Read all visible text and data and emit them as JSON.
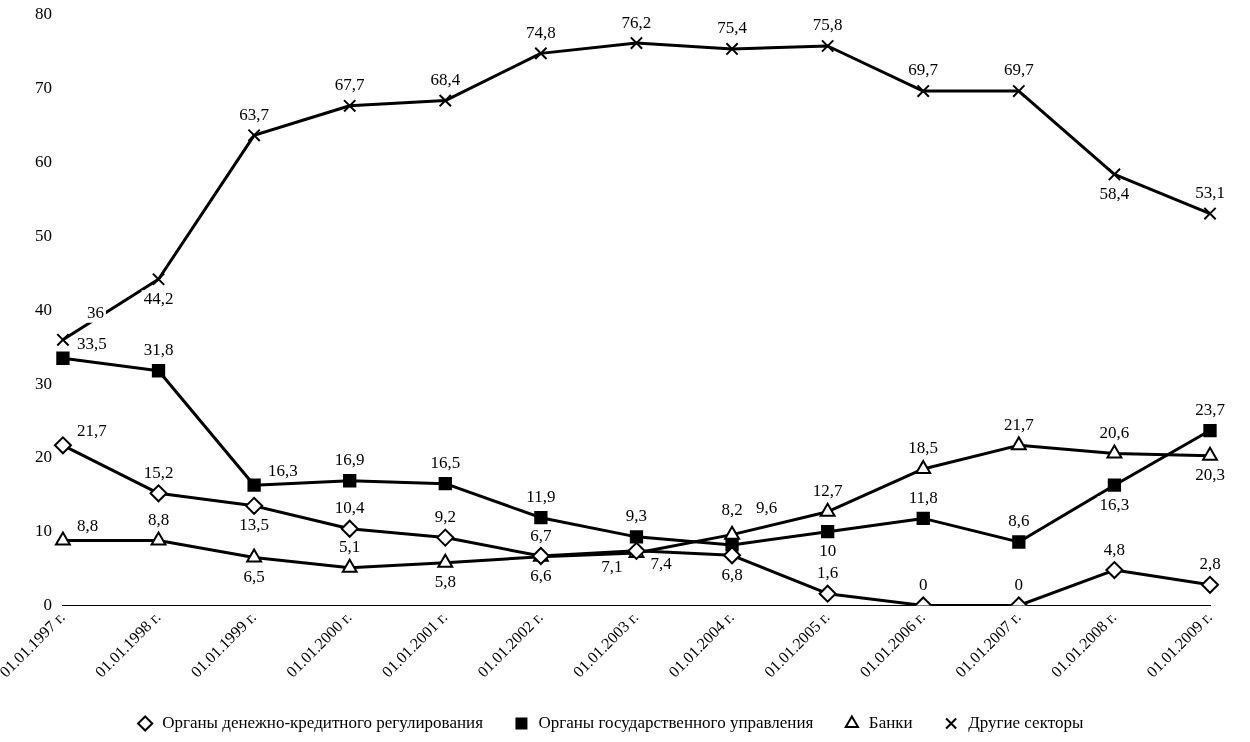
{
  "chart_data": {
    "type": "line",
    "categories": [
      "01.01.1997 г.",
      "01.01.1998 г.",
      "01.01.1999 г.",
      "01.01.2000 г.",
      "01.01.2001 г.",
      "01.01.2002 г.",
      "01.01.2003 г.",
      "01.01.2004 г.",
      "01.01.2005 г.",
      "01.01.2006 г.",
      "01.01.2007 г.",
      "01.01.2008 г.",
      "01.01.2009 г."
    ],
    "series": [
      {
        "name": "Органы денежно-кредитного регулирования",
        "color": "#000000",
        "marker": "diamond",
        "values": [
          21.7,
          15.2,
          13.5,
          10.4,
          9.2,
          6.7,
          7.4,
          6.8,
          1.6,
          0,
          0,
          4.8,
          2.8
        ],
        "value_labels": [
          "21,7",
          "15,2",
          "13,5",
          "10,4",
          "9,2",
          "6,7",
          "7,4",
          "6,8",
          "1,6",
          "0",
          "0",
          "4,8",
          "2,8"
        ]
      },
      {
        "name": "Органы государственного управления",
        "color": "#000000",
        "marker": "square",
        "values": [
          33.5,
          31.8,
          16.3,
          16.9,
          16.5,
          11.9,
          9.3,
          8.2,
          10,
          11.8,
          8.6,
          16.3,
          23.7
        ],
        "value_labels": [
          "33,5",
          "31,8",
          "16,3",
          "16,9",
          "16,5",
          "11,9",
          "9,3",
          "8,2",
          "10",
          "11,8",
          "8,6",
          "16,3",
          "23,7"
        ]
      },
      {
        "name": "Банки",
        "color": "#000000",
        "marker": "triangle",
        "values": [
          8.8,
          8.8,
          6.5,
          5.1,
          5.8,
          6.6,
          7.1,
          9.6,
          12.7,
          18.5,
          21.7,
          20.6,
          20.3
        ],
        "value_labels": [
          "8,8",
          "8,8",
          "6,5",
          "5,1",
          "5,8",
          "6,6",
          "7,1",
          "9,6",
          "12,7",
          "18,5",
          "21,7",
          "20,6",
          "20,3"
        ]
      },
      {
        "name": "Другие секторы",
        "color": "#000000",
        "marker": "cross",
        "values": [
          36,
          44.2,
          63.7,
          67.7,
          68.4,
          74.8,
          76.2,
          75.4,
          75.8,
          69.7,
          69.7,
          58.4,
          53.1
        ],
        "value_labels": [
          "36",
          "44,2",
          "63,7",
          "67,7",
          "68,4",
          "74,8",
          "76,2",
          "75,4",
          "75,8",
          "69,7",
          "69,7",
          "58,4",
          "53,1"
        ]
      }
    ],
    "ylim": [
      0,
      80
    ],
    "yticks": [
      0,
      10,
      20,
      30,
      40,
      50,
      60,
      70,
      80
    ],
    "grid": false,
    "legend": "bottom",
    "line_style": "solid"
  }
}
